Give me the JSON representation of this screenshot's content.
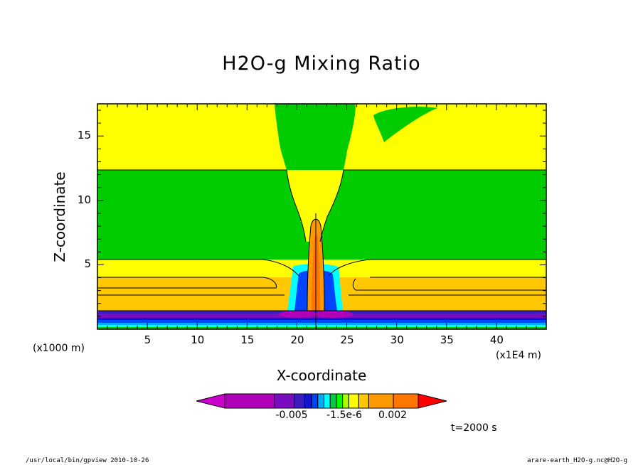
{
  "chart_data": {
    "type": "heatmap",
    "title": "H2O-g Mixing Ratio",
    "xlabel": "X-coordinate",
    "ylabel": "Z-coordinate",
    "x_unit": "(x1E4 m)",
    "y_unit": "(x1000 m)",
    "xlim": [
      0,
      45
    ],
    "ylim": [
      0,
      17.5
    ],
    "x_ticks": [
      "5",
      "10",
      "15",
      "20",
      "25",
      "30",
      "35",
      "40"
    ],
    "y_ticks": [
      "5",
      "10",
      "15"
    ],
    "x_tick_values": [
      5,
      10,
      15,
      20,
      25,
      30,
      35,
      40
    ],
    "y_tick_values": [
      5,
      10,
      15
    ],
    "colorbar": {
      "labels": [
        "-0.005",
        "-1.5e-6",
        "0.002"
      ],
      "colors": [
        "#cc00cc",
        "#b000b8",
        "#7a0cbf",
        "#3a1cc0",
        "#1414d0",
        "#0044ff",
        "#00aaff",
        "#00ffff",
        "#00cc44",
        "#00ff00",
        "#aaff00",
        "#ffff00",
        "#ffc800",
        "#ff9900",
        "#ff7700",
        "#ff0000"
      ]
    },
    "time": "t=2000 s"
  },
  "footer": {
    "left": "/usr/local/bin/gpview  2010-10-26",
    "right": "arare-earth_H2O-g.nc@H2O-g"
  }
}
